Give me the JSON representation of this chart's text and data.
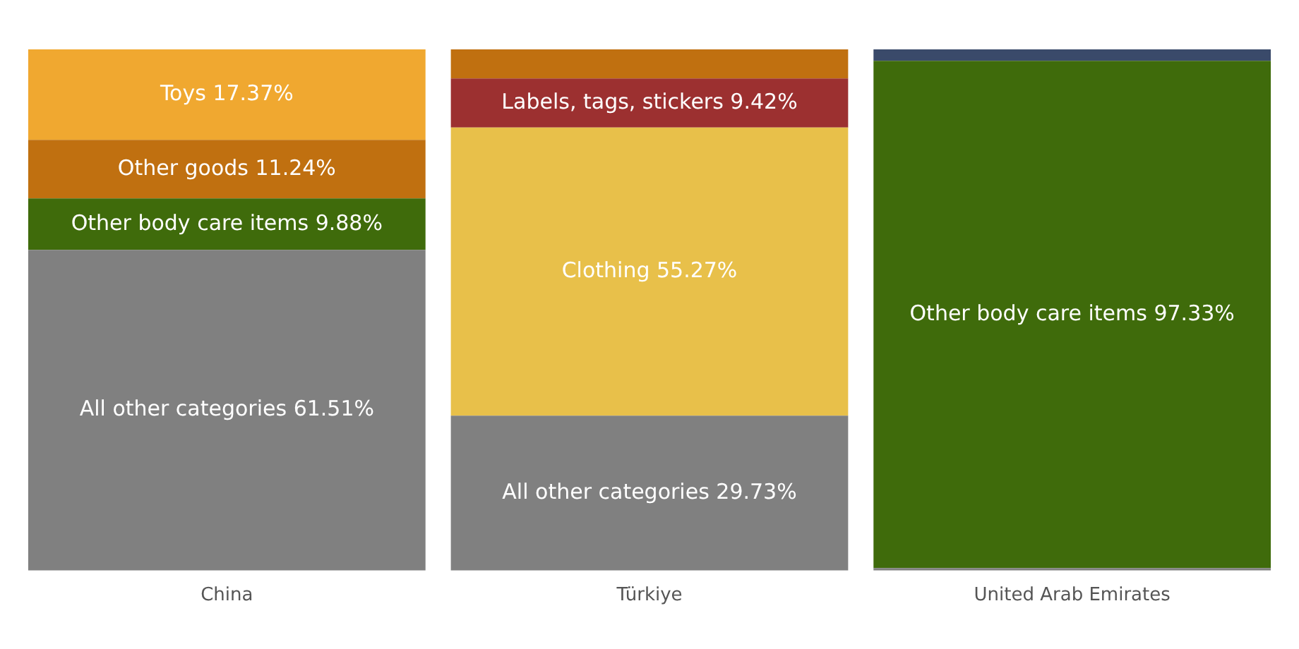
{
  "chart_data": {
    "type": "bar",
    "stacked": true,
    "categories": [
      "China",
      "Türkiye",
      "United Arab Emirates"
    ],
    "tick_labels": "x",
    "series": [
      {
        "name": "All other categories",
        "color": "#808080",
        "values": [
          61.51,
          29.73,
          0.47
        ],
        "value_labels": [
          "61.51%",
          "29.73%",
          null
        ]
      },
      {
        "name": "Other body care items",
        "color": "#3f6b0b",
        "values": [
          9.88,
          null,
          97.33
        ],
        "value_labels": [
          "9.88%",
          null,
          "97.33%"
        ]
      },
      {
        "name": "Clothing",
        "color": "#e8c04a",
        "values": [
          null,
          55.27,
          null
        ],
        "value_labels": [
          null,
          "55.27%",
          null
        ]
      },
      {
        "name": "Labels, tags, stickers",
        "color": "#9c3030",
        "values": [
          null,
          9.42,
          null
        ],
        "value_labels": [
          null,
          "9.42%",
          null
        ]
      },
      {
        "name": "Other goods",
        "color": "#c07010",
        "values": [
          11.24,
          5.58,
          null
        ],
        "value_labels": [
          "11.24%",
          null,
          null
        ]
      },
      {
        "name": "Toys",
        "color": "#f0a830",
        "values": [
          17.37,
          null,
          null
        ],
        "value_labels": [
          "17.37%",
          null,
          null
        ]
      },
      {
        "color": "#3a4a6a",
        "values": [
          null,
          null,
          2.2
        ]
      }
    ]
  }
}
